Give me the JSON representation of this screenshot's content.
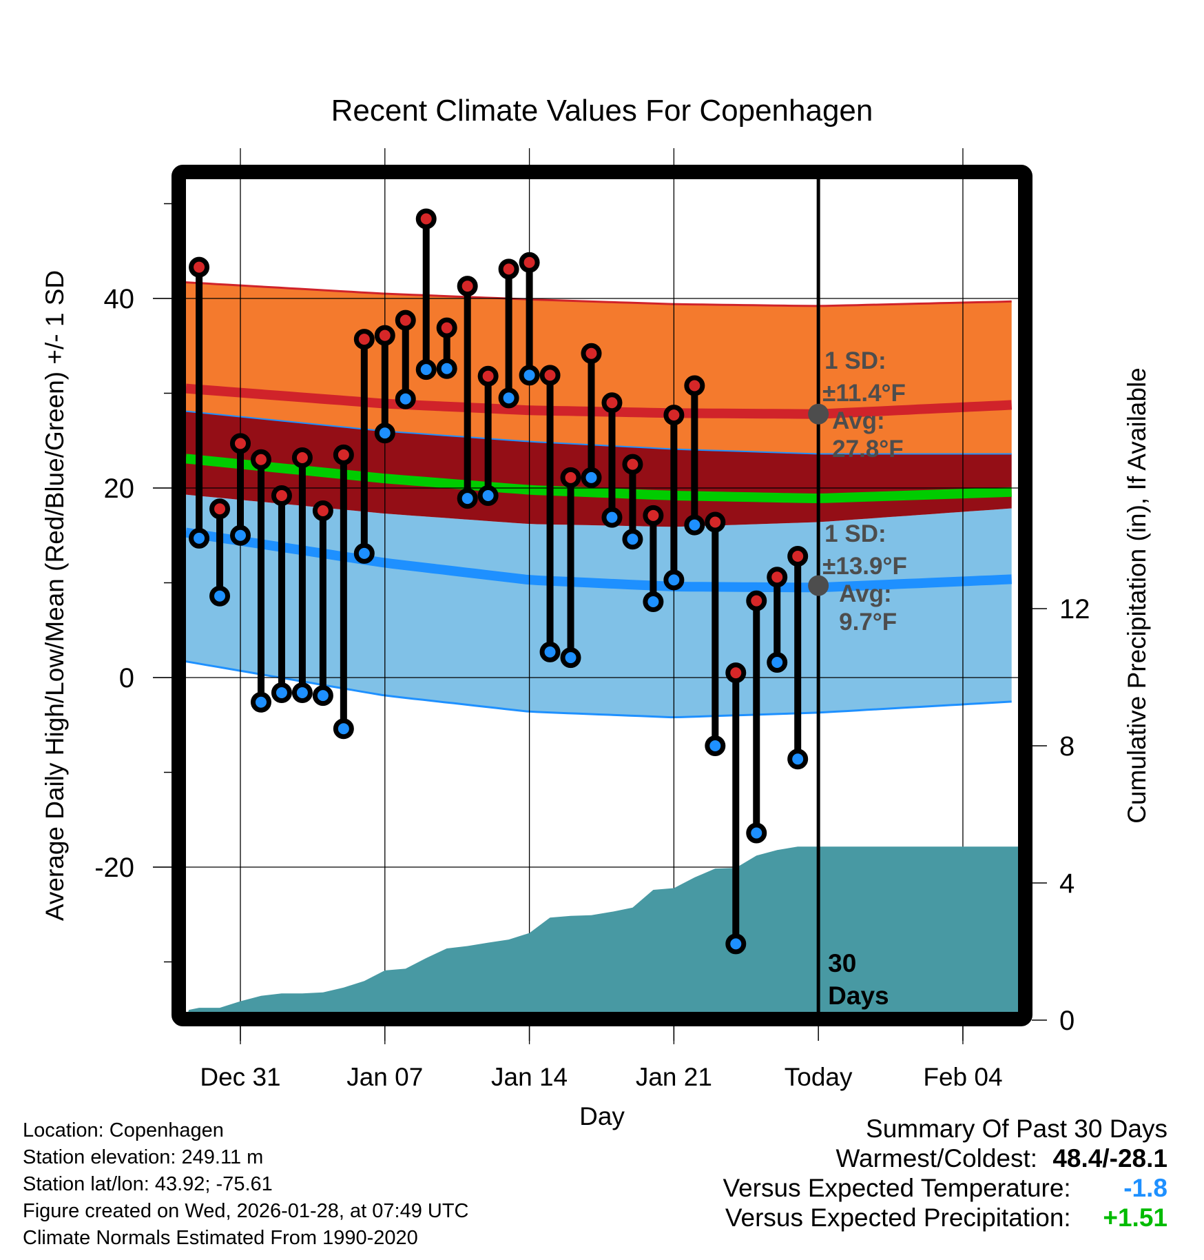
{
  "chart_data": {
    "type": "line",
    "title": "Recent Climate Values For Copenhagen",
    "xlabel": "Day",
    "ylabel": "Average Daily High/Low/Mean (Red/Blue/Green) +/- 1 SD",
    "y2label": "Cumulative Precipitation (in), If Available",
    "ylim": [
      -35.3,
      52.6
    ],
    "y2lim": [
      0,
      18
    ],
    "yticks": [
      -20,
      0,
      20,
      40
    ],
    "y_minor_ticks": [
      -30,
      -10,
      10,
      30,
      50
    ],
    "y2ticks": [
      0,
      4,
      8,
      12
    ],
    "xlim_days_from_dec31": [
      -2.64,
      37.67
    ],
    "xticks": [
      {
        "label": "Dec 31",
        "day": 0
      },
      {
        "label": "Jan 07",
        "day": 7
      },
      {
        "label": "Jan 14",
        "day": 14
      },
      {
        "label": "Jan 21",
        "day": 21
      },
      {
        "label": "Today",
        "day": 28
      },
      {
        "label": "Feb 04",
        "day": 35
      }
    ],
    "today_day": 28,
    "grid": true,
    "days_label": "30\nDays",
    "dates": [
      "Dec 29",
      "Dec 30",
      "Dec 31",
      "Jan 01",
      "Jan 02",
      "Jan 03",
      "Jan 04",
      "Jan 05",
      "Jan 06",
      "Jan 07",
      "Jan 08",
      "Jan 09",
      "Jan 10",
      "Jan 11",
      "Jan 12",
      "Jan 13",
      "Jan 14",
      "Jan 15",
      "Jan 16",
      "Jan 17",
      "Jan 18",
      "Jan 19",
      "Jan 20",
      "Jan 21",
      "Jan 22",
      "Jan 23",
      "Jan 24",
      "Jan 25",
      "Jan 26",
      "Jan 27"
    ],
    "series": [
      {
        "name": "Daily High",
        "color": "#d62728",
        "values": [
          43.3,
          17.8,
          24.7,
          23.0,
          19.2,
          23.2,
          17.6,
          23.5,
          35.7,
          36.1,
          37.7,
          48.4,
          36.9,
          41.3,
          31.8,
          43.1,
          43.8,
          31.9,
          21.1,
          34.2,
          29.0,
          22.5,
          17.1,
          27.7,
          30.8,
          16.4,
          0.5,
          8.1,
          10.6,
          12.8
        ]
      },
      {
        "name": "Daily Low",
        "color": "#1e90ff",
        "values": [
          14.7,
          8.6,
          15.0,
          -2.6,
          -1.6,
          -1.6,
          -1.9,
          -5.4,
          13.1,
          25.8,
          29.4,
          32.5,
          32.6,
          18.9,
          19.2,
          29.5,
          31.9,
          2.7,
          2.1,
          21.1,
          16.9,
          14.6,
          8.0,
          10.3,
          16.1,
          -7.2,
          -28.1,
          -16.4,
          1.6,
          -8.6
        ]
      },
      {
        "name": "Cumulative Precipitation (in)",
        "color": "#4899a3",
        "values": [
          0.36,
          0.36,
          0.55,
          0.71,
          0.78,
          0.78,
          0.81,
          0.95,
          1.14,
          1.45,
          1.5,
          1.81,
          2.09,
          2.16,
          2.26,
          2.35,
          2.54,
          2.99,
          3.04,
          3.06,
          3.16,
          3.28,
          3.8,
          3.85,
          4.16,
          4.42,
          4.44,
          4.8,
          4.96,
          5.06
        ]
      }
    ],
    "climatology": {
      "days": [
        -2.64,
        7,
        14,
        21,
        28,
        37.67
      ],
      "high_plus_sd": [
        41.7,
        40.5,
        39.9,
        39.4,
        39.2,
        39.7
      ],
      "avg_high": [
        30.5,
        28.9,
        28.2,
        27.9,
        27.8,
        28.8
      ],
      "high_minus_sd": [
        28.1,
        26.0,
        24.9,
        24.1,
        23.6,
        23.6
      ],
      "avg_mean": [
        23.1,
        21.0,
        19.8,
        19.2,
        18.9,
        19.6
      ],
      "low_plus_sd": [
        19.3,
        17.3,
        16.2,
        15.9,
        16.4,
        17.9
      ],
      "avg_low": [
        15.3,
        12.1,
        10.3,
        9.6,
        9.5,
        10.4
      ],
      "low_minus_sd": [
        1.7,
        -1.9,
        -3.6,
        -4.2,
        -3.7,
        -2.5
      ],
      "colors": {
        "high_band": "#f47a2d",
        "high_line": "#d0232a",
        "overlap": "#940e16",
        "mean_line": "#00cc00",
        "low_band": "#80c1e7",
        "low_line": "#1e90ff"
      }
    },
    "annotations": {
      "high": {
        "sd_label": "1 SD:",
        "sd_value": "±11.4°F",
        "avg_label": "Avg:",
        "avg_value": "27.8°F",
        "avg": 27.8
      },
      "low": {
        "sd_label": "1 SD:",
        "sd_value": "±13.9°F",
        "avg_label": "Avg:",
        "avg_value": "9.7°F",
        "avg": 9.7
      }
    }
  },
  "footer": {
    "location": "Location: Copenhagen",
    "elevation": "Station elevation: 249.11 m",
    "latlon": "Station lat/lon: 43.92; -75.61",
    "created": "Figure created on Wed, 2026-01-28, at 07:49 UTC",
    "normals": "Climate Normals Estimated From 1990-2020"
  },
  "summary": {
    "title": "Summary Of Past 30 Days",
    "warm_cold_label": "Warmest/Coldest:",
    "warm_cold_value": "48.4/-28.1",
    "temp_label": "Versus Expected Temperature:",
    "temp_value": "-1.8",
    "temp_color": "#1e90ff",
    "precip_label": "Versus Expected Precipitation:",
    "precip_value": "+1.51",
    "precip_color": "#00bb00"
  }
}
